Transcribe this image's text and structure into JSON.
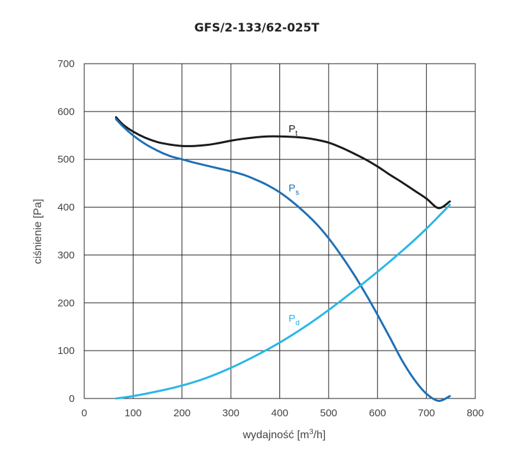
{
  "chart_data": {
    "type": "line",
    "title": "GFS/2-133/62-025T",
    "xlabel": {
      "text": "wydajność [m",
      "sup": "3",
      "after": "/h]"
    },
    "ylabel": "ciśnienie [Pa]",
    "xlim": [
      0,
      800
    ],
    "ylim": [
      0,
      700
    ],
    "xticks": [
      0,
      100,
      200,
      300,
      400,
      500,
      600,
      700,
      800
    ],
    "yticks": [
      0,
      100,
      200,
      300,
      400,
      500,
      600,
      700
    ],
    "grid": true,
    "legend": "inline labels",
    "series": [
      {
        "name": "Pt",
        "label_main": "P",
        "label_sub": "t",
        "color": "#1a1a1a",
        "x": [
          65,
          80,
          100,
          125,
          150,
          175,
          200,
          225,
          250,
          275,
          300,
          325,
          350,
          375,
          400,
          425,
          450,
          475,
          500,
          525,
          550,
          575,
          600,
          625,
          650,
          675,
          700,
          725,
          748
        ],
        "y": [
          588,
          572,
          558,
          545,
          536,
          531,
          528,
          528,
          530,
          534,
          539,
          543,
          546,
          548,
          548,
          547,
          545,
          541,
          535,
          525,
          513,
          500,
          485,
          468,
          452,
          435,
          418,
          398,
          412
        ]
      },
      {
        "name": "Ps",
        "label_main": "P",
        "label_sub": "s",
        "color": "#1f6fb5",
        "x": [
          65,
          80,
          100,
          125,
          150,
          175,
          200,
          225,
          250,
          275,
          300,
          325,
          350,
          375,
          400,
          425,
          450,
          475,
          500,
          525,
          550,
          575,
          600,
          625,
          650,
          675,
          700,
          725,
          748
        ],
        "y": [
          584,
          568,
          550,
          532,
          518,
          507,
          500,
          493,
          487,
          481,
          475,
          468,
          458,
          446,
          431,
          412,
          390,
          365,
          335,
          300,
          262,
          220,
          175,
          128,
          80,
          40,
          10,
          -5,
          5
        ]
      },
      {
        "name": "Pd",
        "label_main": "P",
        "label_sub": "d",
        "color": "#29b6e8",
        "x": [
          65,
          100,
          150,
          200,
          250,
          300,
          350,
          400,
          450,
          500,
          550,
          600,
          650,
          700,
          748
        ],
        "y": [
          0,
          5,
          15,
          27,
          43,
          64,
          89,
          117,
          149,
          185,
          224,
          265,
          308,
          355,
          405
        ]
      }
    ],
    "labels": [
      {
        "series": "Pt",
        "x": 418,
        "y": 557
      },
      {
        "series": "Ps",
        "x": 418,
        "y": 433
      },
      {
        "series": "Pd",
        "x": 418,
        "y": 160
      }
    ]
  }
}
